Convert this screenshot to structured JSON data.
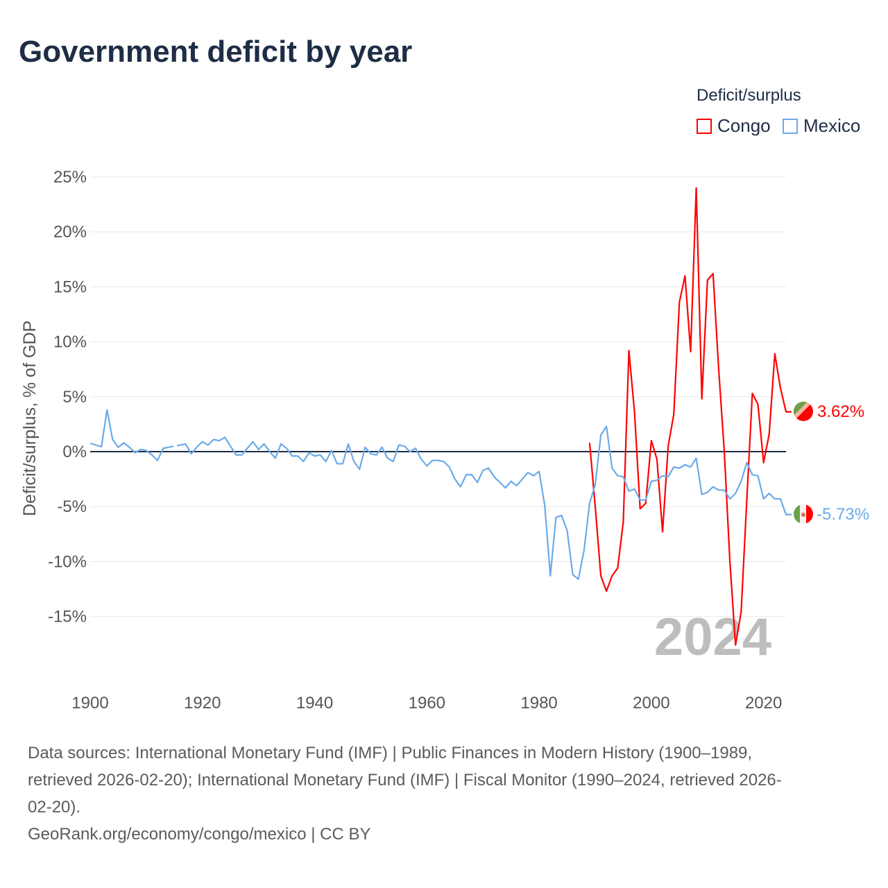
{
  "title": "Government deficit by year",
  "legend": {
    "title": "Deficit/surplus",
    "items": [
      {
        "label": "Congo",
        "color": "#ff0000"
      },
      {
        "label": "Mexico",
        "color": "#6aaae8"
      }
    ]
  },
  "watermark_year": "2024",
  "footer": {
    "lines": [
      "Data sources: International Monetary Fund (IMF) | Public Finances in Modern History (1900–1989,",
      "retrieved 2026-02-20); International Monetary Fund (IMF) | Fiscal Monitor (1990–2024, retrieved 2026-",
      "02-20).",
      "GeoRank.org/economy/congo/mexico | CC BY"
    ]
  },
  "chart_data": {
    "type": "line",
    "title": "Government deficit by year",
    "xlabel": "",
    "ylabel": "Deficit/surplus, % of GDP",
    "xlim": [
      1900,
      2024
    ],
    "ylim": [
      -20,
      26
    ],
    "x_ticks": [
      "1900",
      "1920",
      "1940",
      "1960",
      "1980",
      "2000",
      "2020"
    ],
    "y_ticks": [
      "25%",
      "20%",
      "15%",
      "10%",
      "5%",
      "0%",
      "-5%",
      "-10%",
      "-15%"
    ],
    "y_tick_values": [
      25,
      20,
      15,
      10,
      5,
      0,
      -5,
      -10,
      -15
    ],
    "grid": true,
    "legend_position": "top-right",
    "series": [
      {
        "name": "Congo",
        "color": "#ff0000",
        "start_year": 1989,
        "end_label": "3.62%",
        "values": [
          0.8,
          -5.0,
          -11.3,
          -12.7,
          -11.3,
          -10.6,
          -6.4,
          9.2,
          3.6,
          -5.2,
          -4.7,
          1.0,
          -0.7,
          -7.3,
          0.5,
          3.4,
          13.6,
          16.0,
          9.1,
          24.0,
          4.8,
          15.6,
          16.2,
          7.5,
          0.0,
          -10.0,
          -17.6,
          -14.6,
          -4.5,
          5.3,
          4.3,
          -1.0,
          1.6,
          8.9,
          5.8,
          3.62
        ]
      },
      {
        "name": "Mexico",
        "color": "#6aaae8",
        "start_year": 1900,
        "end_label": "-5.73%",
        "values": [
          0.75,
          0.6,
          0.45,
          3.8,
          1.1,
          0.4,
          0.8,
          0.4,
          -0.1,
          0.2,
          0.1,
          -0.3,
          -0.8,
          0.3,
          0.4,
          null,
          0.6,
          0.7,
          -0.2,
          0.4,
          0.9,
          0.6,
          1.1,
          1.0,
          1.3,
          0.5,
          -0.3,
          -0.3,
          0.3,
          0.9,
          0.2,
          0.7,
          0.0,
          -0.6,
          0.7,
          0.3,
          -0.4,
          -0.4,
          -0.9,
          -0.1,
          -0.4,
          -0.3,
          -0.9,
          0.1,
          -1.1,
          -1.1,
          0.7,
          -0.9,
          -1.6,
          0.4,
          -0.2,
          -0.3,
          0.4,
          -0.6,
          -0.9,
          0.6,
          0.5,
          0.0,
          0.3,
          -0.7,
          -1.3,
          -0.8,
          -0.8,
          -0.9,
          -1.4,
          -2.5,
          -3.2,
          -2.1,
          -2.1,
          -2.8,
          -1.7,
          -1.5,
          -2.3,
          -2.8,
          -3.3,
          -2.7,
          -3.1,
          -2.5,
          -1.9,
          -2.2,
          -1.8,
          -4.9,
          -11.3,
          -6.0,
          -5.8,
          -7.2,
          -11.2,
          -11.6,
          -9.0,
          -4.7,
          -3.0,
          1.5,
          2.3,
          -1.5,
          -2.2,
          -2.3,
          -3.6,
          -3.4,
          -4.4,
          -4.4,
          -2.7,
          -2.6,
          -2.2,
          -2.3,
          -1.4,
          -1.5,
          -1.2,
          -1.4,
          -0.6,
          -3.9,
          -3.7,
          -3.2,
          -3.5,
          -3.5,
          -4.3,
          -3.8,
          -2.7,
          -1.0,
          -2.1,
          -2.2,
          -4.3,
          -3.8,
          -4.3,
          -4.3,
          -5.73
        ]
      }
    ]
  }
}
